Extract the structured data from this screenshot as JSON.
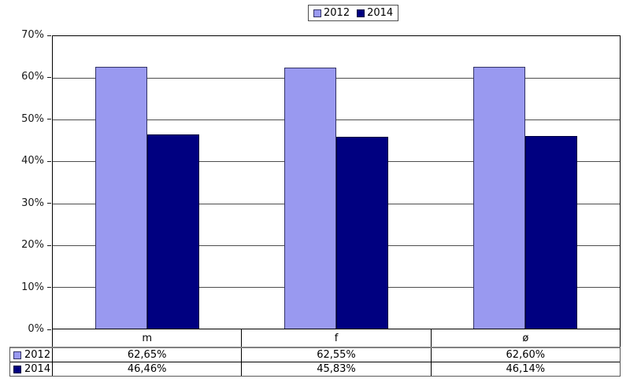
{
  "chart_data": {
    "type": "bar",
    "title": "",
    "xlabel": "",
    "ylabel": "",
    "categories": [
      "m",
      "f",
      "ø"
    ],
    "series": [
      {
        "name": "2012",
        "values": [
          62.65,
          62.55,
          62.6
        ],
        "labels": [
          "62,65%",
          "62,55%",
          "62,60%"
        ],
        "color": "#9999F0",
        "border_color": "#333366"
      },
      {
        "name": "2014",
        "values": [
          46.46,
          45.83,
          46.14
        ],
        "labels": [
          "46,46%",
          "45,83%",
          "46,14%"
        ],
        "color": "#000080",
        "border_color": "#000040"
      }
    ],
    "ylim": [
      0,
      70
    ],
    "yticks": [
      {
        "value": 70,
        "label": "70%"
      },
      {
        "value": 60,
        "label": "60%"
      },
      {
        "value": 50,
        "label": "50%"
      },
      {
        "value": 40,
        "label": "40%"
      },
      {
        "value": 30,
        "label": "30%"
      },
      {
        "value": 20,
        "label": "20%"
      },
      {
        "value": 10,
        "label": "10%"
      },
      {
        "value": 0,
        "label": "0%"
      }
    ],
    "grid": true,
    "legend_position": "top",
    "data_table_shown": true
  }
}
